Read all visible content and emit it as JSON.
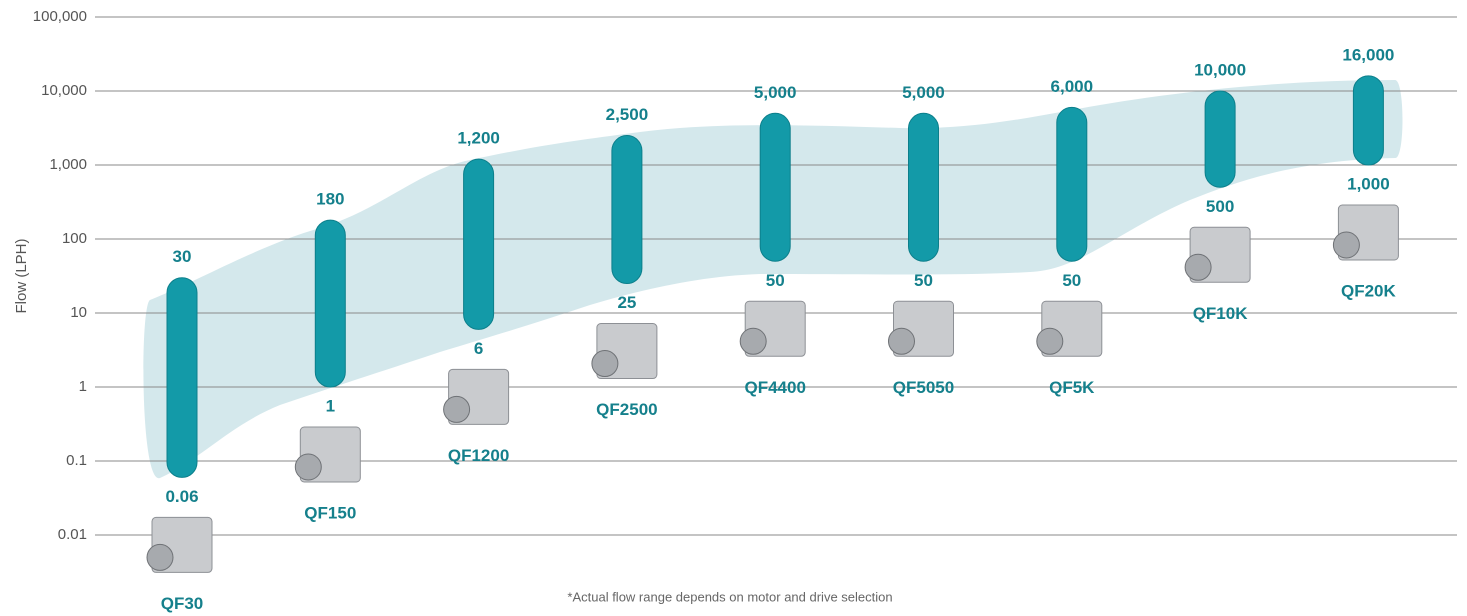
{
  "chart_data": {
    "type": "range-bar",
    "y_label": "Flow (LPH)",
    "footnote": "*Actual flow range depends on motor and drive selection",
    "log_scale": true,
    "grid": true,
    "color": "#139aa8",
    "categories": [
      "QF30",
      "QF150",
      "QF1200",
      "QF2500",
      "QF4400",
      "QF5050",
      "QF5K",
      "QF10K",
      "QF20K"
    ],
    "series": [
      {
        "values": [
          0.06,
          1,
          6,
          25,
          50,
          50,
          50,
          500,
          1000
        ],
        "value_labels": [
          "0.06",
          "1",
          "6",
          "25",
          "50",
          "50",
          "50",
          "500",
          "1,000"
        ]
      },
      {
        "values": [
          30,
          180,
          1200,
          2500,
          5000,
          5000,
          6000,
          10000,
          16000
        ],
        "value_labels": [
          "30",
          "180",
          "1,200",
          "2,500",
          "5,000",
          "5,000",
          "6,000",
          "10,000",
          "16,000"
        ]
      }
    ],
    "ylim": [
      0.01,
      100000
    ],
    "yticks": [
      0.01,
      0.1,
      1,
      10,
      100,
      {
        "value": 1000,
        "label": "1,000"
      },
      {
        "value": 10000,
        "label": "10,000"
      },
      {
        "value": 100000,
        "label": "100,000"
      }
    ]
  }
}
